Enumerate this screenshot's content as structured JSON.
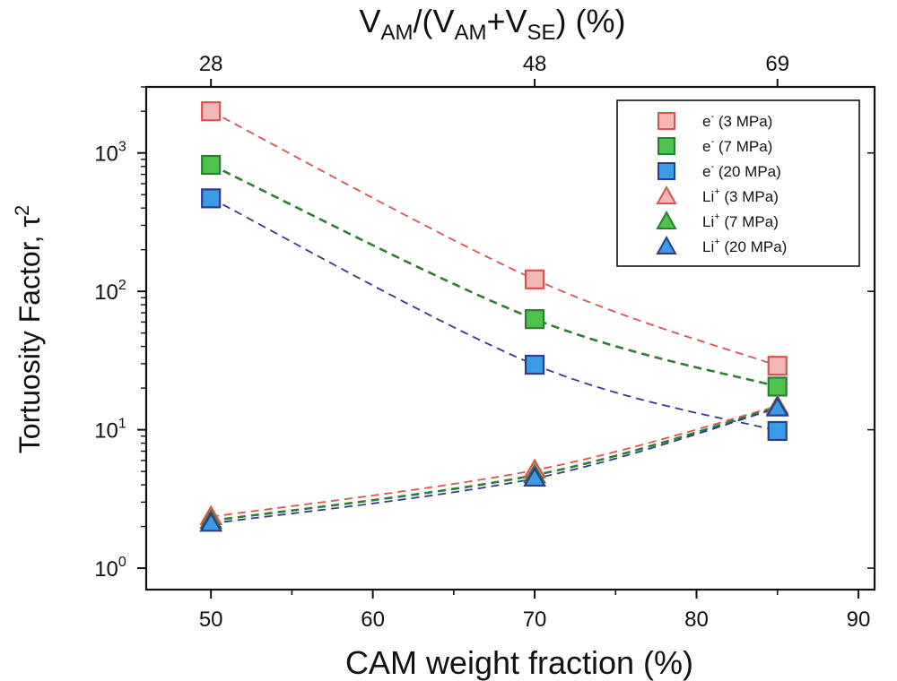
{
  "chart_data": {
    "type": "line",
    "yscale": "log",
    "title": "V_AM/(V_AM+V_SE) (%)",
    "title_parts": {
      "v1": "V",
      "s1": "AM",
      "mid": "/(V",
      "s2": "AM",
      "plus": "+V",
      "s3": "SE",
      "end": ") (%)"
    },
    "xlabel": "CAM weight fraction (%)",
    "ylabel": "Tortuosity Factor, τ",
    "ylabel_superscript": "2",
    "xlim": [
      46,
      91
    ],
    "ylim": [
      0.7,
      3000
    ],
    "x_ticks": [
      50,
      60,
      70,
      80,
      90
    ],
    "x_tick_labels": [
      "50",
      "60",
      "70",
      "80",
      "90"
    ],
    "x_minor_ticks": [
      55,
      65,
      75,
      85
    ],
    "top_ticks": [
      50,
      70,
      85
    ],
    "top_tick_labels": [
      "28",
      "48",
      "69"
    ],
    "y_ticks": [
      {
        "value": 1,
        "base": "10",
        "exp": "0"
      },
      {
        "value": 10,
        "base": "10",
        "exp": "1"
      },
      {
        "value": 100,
        "base": "10",
        "exp": "2"
      },
      {
        "value": 1000,
        "base": "10",
        "exp": "3"
      }
    ],
    "x": [
      50,
      70,
      85
    ],
    "series": [
      {
        "name": "e⁻ (3 MPa)",
        "legend_main": "e",
        "legend_sup": "-",
        "legend_rest": " (3 MPa)",
        "marker": "square",
        "color": "#d9534f",
        "fill": "#f2b8b5",
        "values": [
          2000,
          122,
          29
        ]
      },
      {
        "name": "e⁻ (7 MPa)",
        "legend_main": "e",
        "legend_sup": "-",
        "legend_rest": " (7 MPa)",
        "marker": "square",
        "color": "#2e7d32",
        "fill": "#4cc44c",
        "values": [
          820,
          63,
          20.5
        ]
      },
      {
        "name": "e⁻ (20 MPa)",
        "legend_main": "e",
        "legend_sup": "-",
        "legend_rest": " (20 MPa)",
        "marker": "square",
        "color": "#2c3e8a",
        "fill": "#3c9be6",
        "values": [
          470,
          29.5,
          9.8
        ]
      },
      {
        "name": "Li⁺ (3 MPa)",
        "legend_main": "Li",
        "legend_sup": "+",
        "legend_rest": " (3 MPa)",
        "marker": "triangle",
        "color": "#d9534f",
        "fill": "#f2b8b5",
        "values": [
          2.35,
          5.1,
          14.8
        ]
      },
      {
        "name": "Li⁺ (7 MPa)",
        "legend_main": "Li",
        "legend_sup": "+",
        "legend_rest": " (7 MPa)",
        "marker": "triangle",
        "color": "#2e7d32",
        "fill": "#4cc44c",
        "values": [
          2.2,
          4.7,
          14.5
        ]
      },
      {
        "name": "Li⁺ (20 MPa)",
        "legend_main": "Li",
        "legend_sup": "+",
        "legend_rest": " (20 MPa)",
        "marker": "triangle",
        "color": "#2c3e8a",
        "fill": "#3c9be6",
        "values": [
          2.1,
          4.45,
          14.3
        ]
      }
    ],
    "legend_position": "top-right",
    "line_style": "dashed"
  }
}
